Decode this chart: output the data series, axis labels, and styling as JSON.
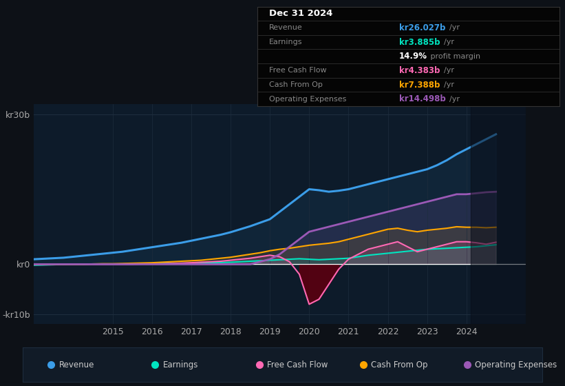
{
  "bg_color": "#0d1117",
  "plot_bg_color": "#0d1b2a",
  "grid_color": "#1e2d3d",
  "years": [
    2013.0,
    2013.25,
    2013.5,
    2013.75,
    2014.0,
    2014.25,
    2014.5,
    2014.75,
    2015.0,
    2015.25,
    2015.5,
    2015.75,
    2016.0,
    2016.25,
    2016.5,
    2016.75,
    2017.0,
    2017.25,
    2017.5,
    2017.75,
    2018.0,
    2018.25,
    2018.5,
    2018.75,
    2019.0,
    2019.25,
    2019.5,
    2019.75,
    2020.0,
    2020.25,
    2020.5,
    2020.75,
    2021.0,
    2021.25,
    2021.5,
    2021.75,
    2022.0,
    2022.25,
    2022.5,
    2022.75,
    2023.0,
    2023.25,
    2023.5,
    2023.75,
    2024.0,
    2024.25,
    2024.5,
    2024.75
  ],
  "revenue": [
    1.0,
    1.1,
    1.2,
    1.3,
    1.5,
    1.7,
    1.9,
    2.1,
    2.3,
    2.5,
    2.8,
    3.1,
    3.4,
    3.7,
    4.0,
    4.3,
    4.7,
    5.1,
    5.5,
    5.9,
    6.4,
    7.0,
    7.6,
    8.3,
    9.0,
    10.5,
    12.0,
    13.5,
    15.0,
    14.8,
    14.5,
    14.7,
    15.0,
    15.5,
    16.0,
    16.5,
    17.0,
    17.5,
    18.0,
    18.5,
    19.0,
    19.8,
    20.8,
    22.0,
    23.0,
    24.0,
    25.0,
    26.0
  ],
  "earnings": [
    -0.2,
    -0.15,
    -0.1,
    -0.05,
    0.0,
    0.0,
    0.05,
    0.05,
    0.05,
    0.05,
    0.1,
    0.1,
    0.1,
    0.15,
    0.15,
    0.2,
    0.2,
    0.25,
    0.3,
    0.35,
    0.4,
    0.5,
    0.6,
    0.7,
    0.8,
    0.9,
    1.0,
    1.1,
    1.0,
    0.9,
    1.0,
    1.1,
    1.2,
    1.5,
    1.8,
    2.0,
    2.2,
    2.4,
    2.6,
    2.8,
    3.0,
    3.1,
    3.2,
    3.3,
    3.4,
    3.5,
    3.7,
    3.9
  ],
  "free_cash_flow": [
    0.0,
    0.0,
    0.0,
    0.0,
    0.0,
    0.0,
    0.0,
    0.0,
    0.0,
    0.0,
    0.0,
    0.05,
    0.1,
    0.1,
    0.15,
    0.2,
    0.3,
    0.4,
    0.5,
    0.6,
    0.8,
    1.0,
    1.2,
    1.5,
    1.8,
    1.5,
    0.5,
    -2.0,
    -8.0,
    -7.0,
    -4.0,
    -1.0,
    1.0,
    2.0,
    3.0,
    3.5,
    4.0,
    4.5,
    3.5,
    2.5,
    3.0,
    3.5,
    4.0,
    4.5,
    4.5,
    4.3,
    4.0,
    4.4
  ],
  "cash_from_op": [
    0.0,
    0.0,
    0.0,
    0.0,
    0.0,
    0.0,
    0.05,
    0.1,
    0.1,
    0.15,
    0.2,
    0.25,
    0.3,
    0.4,
    0.5,
    0.6,
    0.7,
    0.8,
    1.0,
    1.2,
    1.4,
    1.7,
    2.0,
    2.3,
    2.7,
    3.0,
    3.2,
    3.5,
    3.8,
    4.0,
    4.2,
    4.5,
    5.0,
    5.5,
    6.0,
    6.5,
    7.0,
    7.2,
    6.8,
    6.5,
    6.8,
    7.0,
    7.2,
    7.5,
    7.4,
    7.4,
    7.3,
    7.4
  ],
  "operating_expenses": [
    0.0,
    0.0,
    0.0,
    0.0,
    0.0,
    0.0,
    0.0,
    0.0,
    0.0,
    0.0,
    0.0,
    0.0,
    0.0,
    0.0,
    0.0,
    0.0,
    0.0,
    0.0,
    0.0,
    0.0,
    0.0,
    0.0,
    0.0,
    0.5,
    1.0,
    2.0,
    3.5,
    5.0,
    6.5,
    7.0,
    7.5,
    8.0,
    8.5,
    9.0,
    9.5,
    10.0,
    10.5,
    11.0,
    11.5,
    12.0,
    12.5,
    13.0,
    13.5,
    14.0,
    14.0,
    14.2,
    14.4,
    14.5
  ],
  "revenue_color": "#3b9de8",
  "earnings_color": "#00e5c0",
  "fcf_color": "#ff69b4",
  "cashop_color": "#ffa500",
  "opex_color": "#9b59b6",
  "ylim": [
    -12,
    32
  ],
  "xlim": [
    2013.0,
    2025.5
  ],
  "xtick_years": [
    2015,
    2016,
    2017,
    2018,
    2019,
    2020,
    2021,
    2022,
    2023,
    2024
  ],
  "info_rows": [
    {
      "label": "Dec 31 2024",
      "value": null,
      "color": null,
      "suffix": null,
      "is_title": true
    },
    {
      "label": "Revenue",
      "value": "kr26.027b",
      "color": "#3b9de8",
      "suffix": "/yr",
      "is_title": false
    },
    {
      "label": "Earnings",
      "value": "kr3.885b",
      "color": "#00e5c0",
      "suffix": "/yr",
      "is_title": false
    },
    {
      "label": "",
      "value": "14.9%",
      "color": "#ffffff",
      "suffix": " profit margin",
      "is_title": false
    },
    {
      "label": "Free Cash Flow",
      "value": "kr4.383b",
      "color": "#ff69b4",
      "suffix": "/yr",
      "is_title": false
    },
    {
      "label": "Cash From Op",
      "value": "kr7.388b",
      "color": "#ffa500",
      "suffix": "/yr",
      "is_title": false
    },
    {
      "label": "Operating Expenses",
      "value": "kr14.498b",
      "color": "#9b59b6",
      "suffix": "/yr",
      "is_title": false
    }
  ],
  "legend_items": [
    {
      "label": "Revenue",
      "color": "#3b9de8"
    },
    {
      "label": "Earnings",
      "color": "#00e5c0"
    },
    {
      "label": "Free Cash Flow",
      "color": "#ff69b4"
    },
    {
      "label": "Cash From Op",
      "color": "#ffa500"
    },
    {
      "label": "Operating Expenses",
      "color": "#9b59b6"
    }
  ]
}
